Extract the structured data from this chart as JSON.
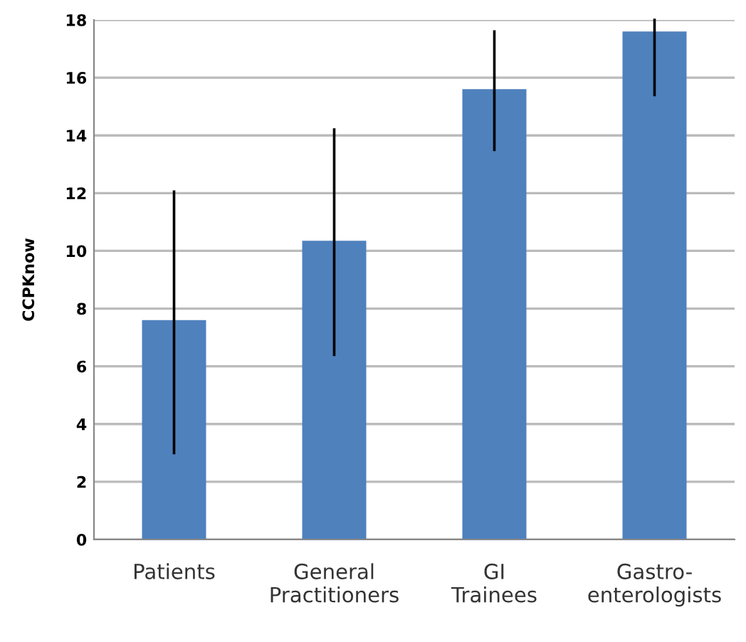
{
  "chart_data": {
    "type": "bar",
    "ylabel": "CCPKnow",
    "categories": [
      "Patients",
      "General\nPractitioners",
      "GI\nTrainees",
      "Gastro-\nenterologists"
    ],
    "values": [
      7.6,
      10.35,
      15.6,
      17.6
    ],
    "errors": [
      [
        3.0,
        12.05
      ],
      [
        6.4,
        14.2
      ],
      [
        13.5,
        17.6
      ],
      [
        15.4,
        18
      ]
    ],
    "color": "#4f81bd",
    "ylim": [
      0,
      18
    ],
    "yticks": [
      0,
      2,
      4,
      6,
      8,
      10,
      12,
      14,
      16,
      18
    ],
    "grid": "y"
  }
}
